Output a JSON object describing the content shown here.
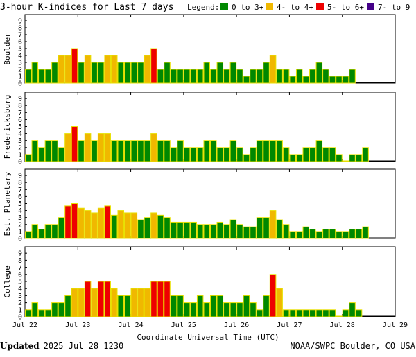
{
  "title": "3-hour K-indices for Last 7 days",
  "legend": {
    "label": "Legend:",
    "items": [
      {
        "label": "0 to 3+",
        "color": "#008800"
      },
      {
        "label": "4- to 4+",
        "color": "#f0b800"
      },
      {
        "label": "5- to 6+",
        "color": "#ee0000"
      },
      {
        "label": "7- to 9",
        "color": "#440088"
      }
    ]
  },
  "chart_data": {
    "type": "bar",
    "xlabel": "Coordinate Universal Time (UTC)",
    "x_ticks": [
      "Jul 22",
      "Jul 23",
      "Jul 24",
      "Jul 25",
      "Jul 26",
      "Jul 27",
      "Jul 28",
      "Jul 29"
    ],
    "ylim": [
      0,
      9
    ],
    "y_ticks": [
      "0",
      "1",
      "2",
      "3",
      "4",
      "5",
      "6",
      "7",
      "8",
      "9"
    ],
    "interval_hours": 3,
    "series": [
      {
        "name": "Boulder",
        "values": [
          2,
          3,
          2,
          2,
          3,
          4,
          4,
          5,
          3,
          4,
          3,
          3,
          4,
          4,
          3,
          3,
          3,
          3,
          4,
          5,
          2,
          3,
          2,
          2,
          2,
          2,
          2,
          3,
          2,
          3,
          2,
          3,
          2,
          1,
          2,
          2,
          3,
          4,
          2,
          2,
          1,
          2,
          1,
          2,
          3,
          2,
          1,
          1,
          1,
          2
        ]
      },
      {
        "name": "Fredericksburg",
        "values": [
          1,
          3,
          2,
          3,
          3,
          2,
          4,
          5,
          3,
          4,
          3,
          4,
          4,
          3,
          3,
          3,
          3,
          3,
          3,
          4,
          3,
          3,
          2,
          3,
          2,
          2,
          2,
          3,
          3,
          2,
          2,
          3,
          2,
          1,
          2,
          3,
          3,
          3,
          3,
          2,
          1,
          1,
          2,
          2,
          3,
          2,
          2,
          1,
          0,
          1,
          1,
          2
        ]
      },
      {
        "name": "Est. Planetary",
        "values": [
          1,
          2,
          1.333,
          2,
          2,
          3,
          4.667,
          5,
          4.333,
          4,
          3.667,
          4.333,
          4.667,
          3.333,
          4,
          3.667,
          3.667,
          2.667,
          3,
          3.667,
          3.333,
          3,
          2.333,
          2.333,
          2.333,
          2.333,
          2,
          2,
          2,
          2.333,
          2,
          2.667,
          2,
          1.667,
          1.667,
          3,
          3,
          4,
          2.667,
          2,
          1,
          1,
          1.667,
          1.333,
          1,
          1.333,
          1.333,
          1,
          1,
          1.333,
          1.333,
          1.667
        ]
      },
      {
        "name": "College",
        "values": [
          1,
          2,
          1,
          1,
          2,
          2,
          3,
          4,
          4,
          5,
          4,
          5,
          5,
          4,
          3,
          3,
          4,
          4,
          4,
          5,
          5,
          5,
          3,
          3,
          2,
          2,
          3,
          2,
          3,
          3,
          2,
          2,
          2,
          3,
          2,
          1,
          3,
          6,
          4,
          1,
          1,
          1,
          1,
          1,
          1,
          1,
          1,
          0,
          1,
          2,
          1
        ]
      }
    ]
  },
  "footer": {
    "updated_label": "Updated",
    "updated_value": "2025 Jul 28 1230",
    "source": "NOAA/SWPC Boulder, CO USA"
  }
}
